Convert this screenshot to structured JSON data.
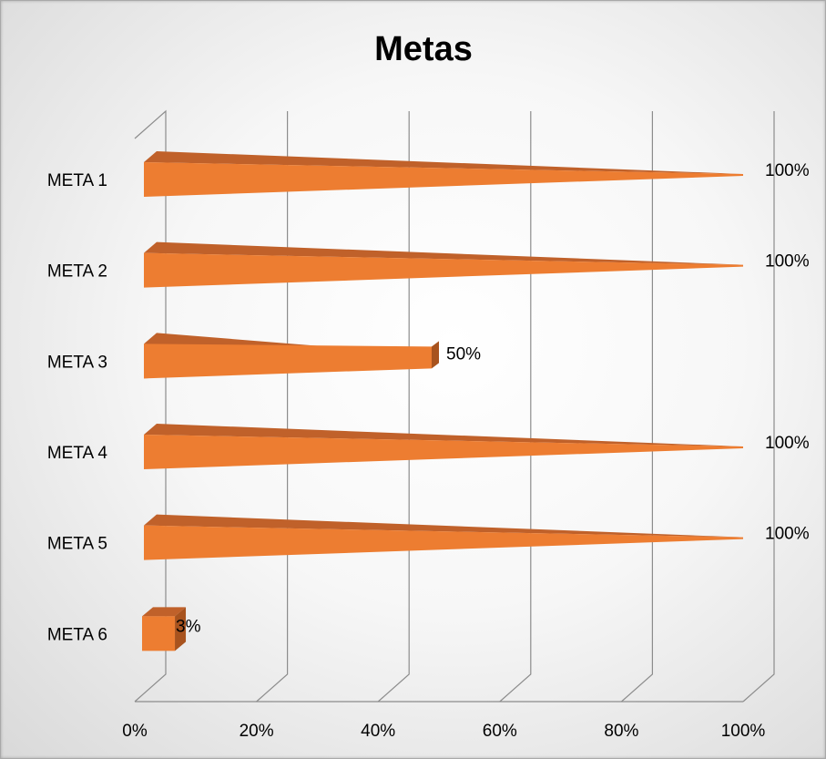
{
  "chart_data": {
    "type": "bar",
    "orientation": "horizontal",
    "style": "3d-cone",
    "title": "Metas",
    "categories": [
      "META 1",
      "META 2",
      "META 3",
      "META 4",
      "META 5",
      "META 6"
    ],
    "values": [
      100,
      100,
      50,
      100,
      100,
      3
    ],
    "data_labels": [
      "100%",
      "100%",
      "50%",
      "100%",
      "100%",
      "3%"
    ],
    "xlim": [
      0,
      100
    ],
    "x_ticks": [
      "0%",
      "20%",
      "40%",
      "60%",
      "80%",
      "100%"
    ],
    "grid": true,
    "legend": "none",
    "colors": {
      "bar_front": "#ed7d31",
      "bar_top": "#c0612a",
      "bar_side": "#a8531e",
      "grid": "#8c8c8c"
    }
  }
}
